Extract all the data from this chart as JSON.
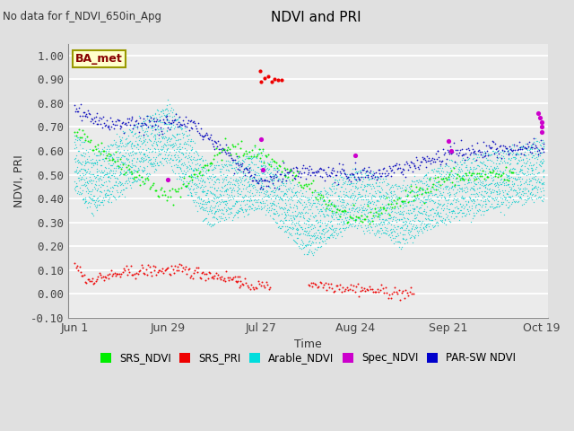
{
  "title": "NDVI and PRI",
  "subtitle": "No data for f_NDVI_650in_Apg",
  "xlabel": "Time",
  "ylabel": "NDVI, PRI",
  "ylim": [
    -0.1,
    1.05
  ],
  "yticks": [
    -0.1,
    0.0,
    0.1,
    0.2,
    0.3,
    0.4,
    0.5,
    0.6,
    0.7,
    0.8,
    0.9,
    1.0
  ],
  "xtick_labels": [
    "Jun 1",
    "Jun 29",
    "Jul 27",
    "Aug 24",
    "Sep 21",
    "Oct 19"
  ],
  "xtick_positions": [
    0,
    28,
    56,
    84,
    112,
    140
  ],
  "box_label": "BA_met",
  "legend": [
    "SRS_NDVI",
    "SRS_PRI",
    "Arable_NDVI",
    "Spec_NDVI",
    "PAR-SW NDVI"
  ],
  "legend_colors": [
    "#00ee00",
    "#ee0000",
    "#00dddd",
    "#cc00cc",
    "#0000cc"
  ],
  "fig_bg": "#e0e0e0",
  "plot_bg": "#ebebeb",
  "srs_ndvi_color": "#00ee00",
  "srs_pri_color": "#ee0000",
  "arable_ndvi_color": "#00cccc",
  "spec_ndvi_color": "#cc00cc",
  "parsw_ndvi_color": "#0000bb"
}
